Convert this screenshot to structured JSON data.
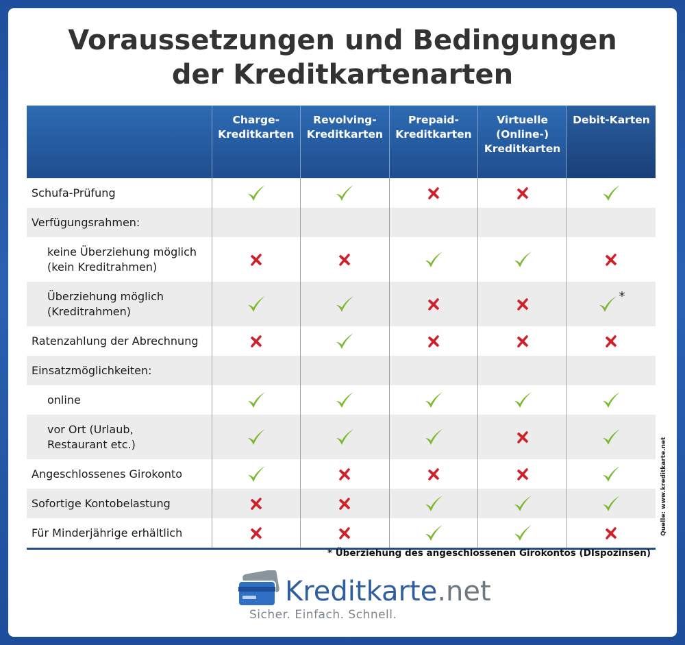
{
  "title": {
    "line1": "Voraussetzungen und Bedingungen",
    "line2": "der Kreditkartenarten"
  },
  "columns": [
    "Charge-\nKreditkarten",
    "Revolving-\nKreditkarten",
    "Prepaid-\nKreditkarten",
    "Virtuelle\n(Online-)\nKreditkarten",
    "Debit-Karten"
  ],
  "rows": [
    {
      "label": "Schufa-Prüfung",
      "indent": false,
      "values": [
        "check",
        "check",
        "cross",
        "cross",
        "check"
      ]
    },
    {
      "label": "Verfügungsrahmen:",
      "indent": false,
      "values": [
        "",
        "",
        "",
        "",
        ""
      ]
    },
    {
      "label": "keine Überziehung möglich\n(kein Kreditrahmen)",
      "indent": true,
      "values": [
        "cross",
        "cross",
        "check",
        "check",
        "cross"
      ]
    },
    {
      "label": "Überziehung möglich\n(Kreditrahmen)",
      "indent": true,
      "values": [
        "check",
        "check",
        "cross",
        "cross",
        "check*"
      ]
    },
    {
      "label": "Ratenzahlung der Abrechnung",
      "indent": false,
      "values": [
        "cross",
        "check",
        "cross",
        "cross",
        "cross"
      ]
    },
    {
      "label": "Einsatzmöglichkeiten:",
      "indent": false,
      "values": [
        "",
        "",
        "",
        "",
        ""
      ]
    },
    {
      "label": "online",
      "indent": true,
      "values": [
        "check",
        "check",
        "check",
        "check",
        "check"
      ]
    },
    {
      "label": "vor Ort (Urlaub,\nRestaurant etc.)",
      "indent": true,
      "values": [
        "check",
        "check",
        "check",
        "cross",
        "check"
      ]
    },
    {
      "label": "Angeschlossenes Girokonto",
      "indent": false,
      "values": [
        "check",
        "cross",
        "cross",
        "cross",
        "check"
      ]
    },
    {
      "label": "Sofortige Kontobelastung",
      "indent": false,
      "values": [
        "cross",
        "cross",
        "check",
        "check",
        "check"
      ]
    },
    {
      "label": "Für Minderjährige erhältlich",
      "indent": false,
      "values": [
        "cross",
        "cross",
        "check",
        "check",
        "cross"
      ]
    }
  ],
  "footnote": "* Überziehung des angeschlossenen Girokontos (DIspozinsen)",
  "source": "Quelle: www.kreditkarte.net",
  "logo": {
    "name": "Kreditkarte",
    "tld": ".net",
    "slogan": "Sicher. Einfach. Schnell."
  },
  "colors": {
    "header_blue": "#1f4e8f",
    "check_green": "#7cb82f",
    "cross_red": "#d0202a",
    "row_gray": "#ececec",
    "brand_blue": "#2f5d9e"
  },
  "icons": {
    "yes": "check-icon",
    "no": "cross-icon"
  }
}
